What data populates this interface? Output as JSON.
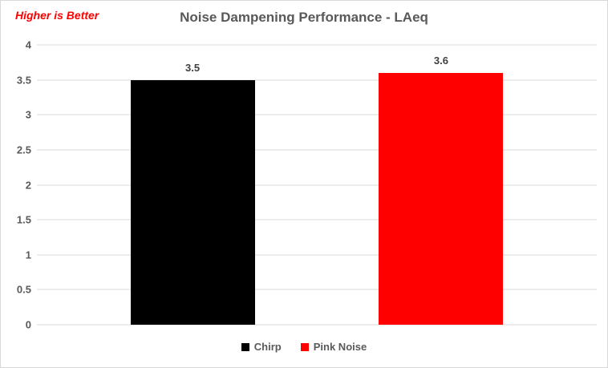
{
  "chart_data": {
    "type": "bar",
    "title": "Noise Dampening Performance - LAeq",
    "annotation": "Higher is Better",
    "categories": [
      "Chirp",
      "Pink Noise"
    ],
    "series": [
      {
        "name": "Chirp",
        "value": 3.5,
        "label": "3.5",
        "color": "#000000"
      },
      {
        "name": "Pink Noise",
        "value": 3.6,
        "label": "3.6",
        "color": "#FF0000"
      }
    ],
    "xlabel": "",
    "ylabel": "",
    "ylim": [
      0,
      4
    ],
    "ytick_step": 0.5,
    "yticks": [
      "0",
      "0.5",
      "1",
      "1.5",
      "2",
      "2.5",
      "3",
      "3.5",
      "4"
    ],
    "grid": true,
    "legend_position": "bottom"
  },
  "colors": {
    "background": "#FFFFFF",
    "border": "#D9D9D9",
    "gridline": "#D9D9D9",
    "title_text": "#595959",
    "tick_text": "#595959",
    "data_label_text": "#404040",
    "legend_text": "#595959",
    "annotation_text": "#FF0000",
    "bar_chirp": "#000000",
    "bar_pink_noise": "#FF0000"
  }
}
